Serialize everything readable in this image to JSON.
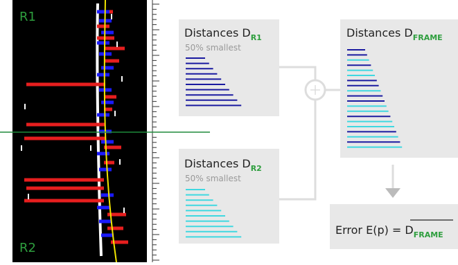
{
  "image_panel": {
    "top_label": "R1",
    "bottom_label": "R2"
  },
  "boxes": [
    {
      "title": "Distances D",
      "subscript": "R1",
      "subtitle": "50% smallest"
    },
    {
      "title": "Distances D",
      "subscript": "R2",
      "subtitle": "50% smallest"
    },
    {
      "title": "Distances D",
      "subscript": "FRAME"
    }
  ],
  "result": {
    "text": "Error E(p) = D",
    "subscript": "FRAME"
  }
}
